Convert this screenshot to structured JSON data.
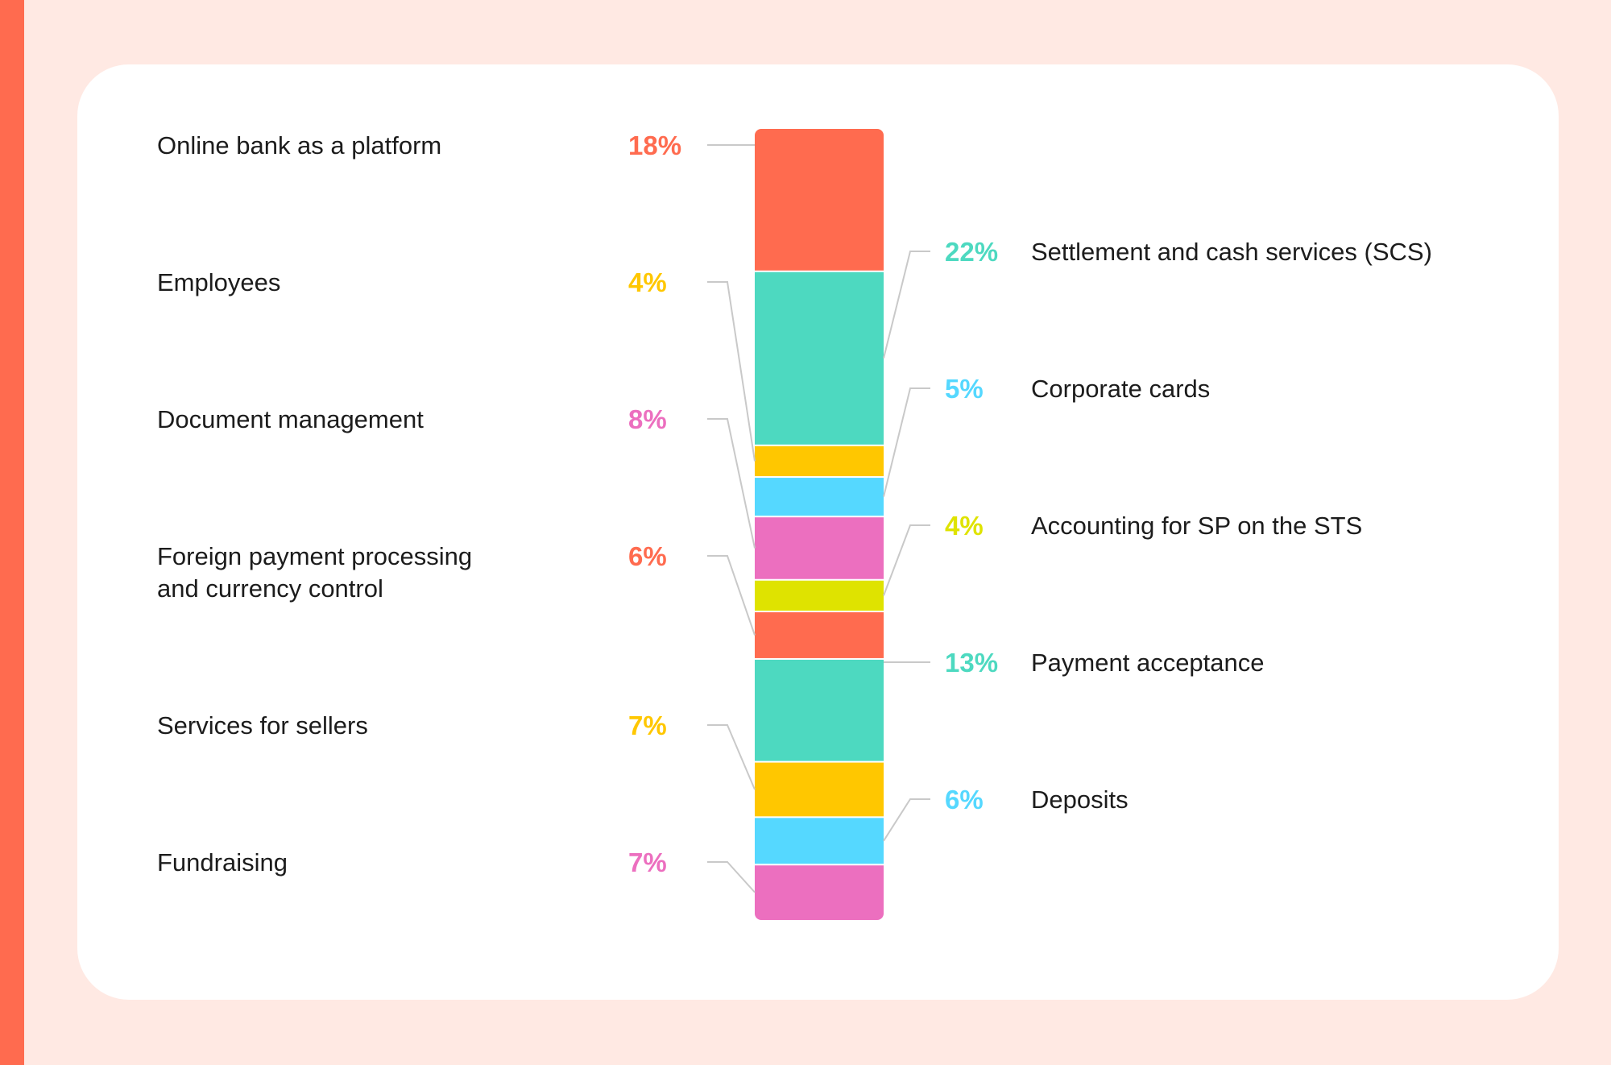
{
  "chart_data": {
    "type": "stacked-bar",
    "orientation": "vertical",
    "segments": [
      {
        "label": "Online bank as a platform",
        "value": 18,
        "display": "18%",
        "color": "#ff6b4f",
        "side": "left"
      },
      {
        "label": "Settlement and cash services (SCS)",
        "value": 22,
        "display": "22%",
        "color": "#4dd9c0",
        "side": "right"
      },
      {
        "label": "Employees",
        "value": 4,
        "display": "4%",
        "color": "#ffc700",
        "side": "left"
      },
      {
        "label": "Corporate cards",
        "value": 5,
        "display": "5%",
        "color": "#55d8ff",
        "side": "right"
      },
      {
        "label": "Document management",
        "value": 8,
        "display": "8%",
        "color": "#ec6fbf",
        "side": "left"
      },
      {
        "label": "Accounting for SP on the STS",
        "value": 4,
        "display": "4%",
        "color": "#dfe300",
        "side": "right"
      },
      {
        "label": "Foreign payment processing and currency control",
        "label_lines": [
          "Foreign payment processing",
          "and currency control"
        ],
        "value": 6,
        "display": "6%",
        "color": "#ff6b4f",
        "side": "left"
      },
      {
        "label": "Payment acceptance",
        "value": 13,
        "display": "13%",
        "color": "#4dd9c0",
        "side": "right"
      },
      {
        "label": "Services for sellers",
        "value": 7,
        "display": "7%",
        "color": "#ffc700",
        "side": "left"
      },
      {
        "label": "Deposits",
        "value": 6,
        "display": "6%",
        "color": "#55d8ff",
        "side": "right"
      },
      {
        "label": "Fundraising",
        "value": 7,
        "display": "7%",
        "color": "#ec6fbf",
        "side": "left"
      }
    ],
    "colors": {
      "background": "#ffe9e3",
      "card": "#ffffff",
      "accent": "#ff6b4f",
      "label_text": "#1c1c1c",
      "leader_line": "#c9c9c9"
    }
  }
}
